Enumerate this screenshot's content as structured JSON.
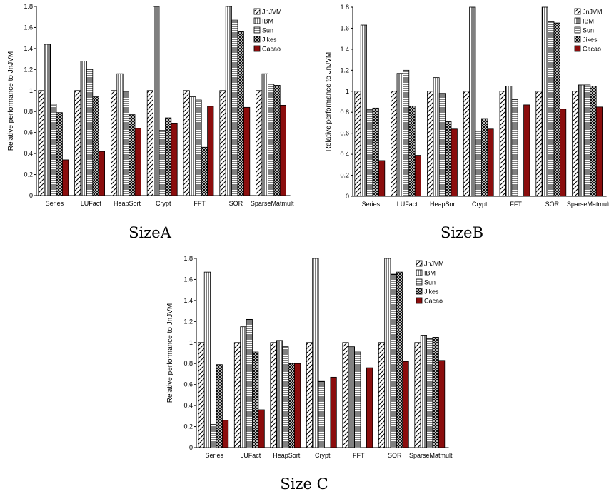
{
  "patterns": {
    "JnJVM": {
      "type": "diag",
      "color": "#000000"
    },
    "IBM": {
      "type": "vlines",
      "color": "#000000"
    },
    "Sun": {
      "type": "hlines",
      "color": "#000000"
    },
    "Jikes": {
      "type": "cross",
      "color": "#000000"
    },
    "Cacao": {
      "type": "solid",
      "color": "#8b0d0d"
    }
  },
  "chart_data": [
    {
      "type": "bar",
      "caption": "SizeA",
      "ylabel": "Relative performance to JnJVM",
      "ylim": [
        0,
        1.8
      ],
      "yticks": [
        "0",
        "0.2",
        "0.4",
        "0.6",
        "0.8",
        "1",
        "1.2",
        "1.4",
        "1.6",
        "1.8"
      ],
      "legend_position": "top-right",
      "categories": [
        "Series",
        "LUFact",
        "HeapSort",
        "Crypt",
        "FFT",
        "SOR",
        "SparseMatmult"
      ],
      "series": [
        {
          "name": "JnJVM",
          "values": [
            1,
            1,
            1,
            1,
            1,
            1,
            1
          ]
        },
        {
          "name": "IBM",
          "values": [
            1.44,
            1.28,
            1.16,
            1.8,
            0.94,
            1.8,
            1.16
          ]
        },
        {
          "name": "Sun",
          "values": [
            0.87,
            1.2,
            0.99,
            0.62,
            0.91,
            1.67,
            1.06
          ]
        },
        {
          "name": "Jikes",
          "values": [
            0.79,
            0.94,
            0.77,
            0.74,
            0.46,
            1.56,
            1.05
          ]
        },
        {
          "name": "Cacao",
          "values": [
            0.34,
            0.42,
            0.64,
            0.69,
            0.85,
            0.84,
            0.86
          ]
        }
      ]
    },
    {
      "type": "bar",
      "caption": "SizeB",
      "ylabel": "Relative performance to JnJVM",
      "ylim": [
        0,
        1.8
      ],
      "yticks": [
        "0",
        "0.2",
        "0.4",
        "0.6",
        "0.8",
        "1",
        "1.2",
        "1.4",
        "1.6",
        "1.8"
      ],
      "legend_position": "top-right",
      "categories": [
        "Series",
        "LUFact",
        "HeapSort",
        "Crypt",
        "FFT",
        "SOR",
        "SparseMatmult"
      ],
      "series": [
        {
          "name": "JnJVM",
          "values": [
            1,
            1,
            1,
            1,
            1,
            1,
            1
          ]
        },
        {
          "name": "IBM",
          "values": [
            1.63,
            1.17,
            1.13,
            1.8,
            1.05,
            1.8,
            1.06
          ]
        },
        {
          "name": "Sun",
          "values": [
            0.83,
            1.2,
            0.98,
            0.62,
            0.92,
            1.66,
            1.06
          ]
        },
        {
          "name": "Jikes",
          "values": [
            0.84,
            0.86,
            0.71,
            0.74,
            0,
            1.65,
            1.05
          ]
        },
        {
          "name": "Cacao",
          "values": [
            0.34,
            0.39,
            0.64,
            0.64,
            0.87,
            0.83,
            0.85
          ]
        }
      ]
    },
    {
      "type": "bar",
      "caption": "Size C",
      "ylabel": "Relative performance to JnJVM",
      "ylim": [
        0,
        1.8
      ],
      "yticks": [
        "0",
        "0.2",
        "0.4",
        "0.6",
        "0.8",
        "1",
        "1.2",
        "1.4",
        "1.6",
        "1.8"
      ],
      "legend_position": "top-right",
      "categories": [
        "Series",
        "LUFact",
        "HeapSort",
        "Crypt",
        "FFT",
        "SOR",
        "SparseMatmult"
      ],
      "series": [
        {
          "name": "JnJVM",
          "values": [
            1,
            1,
            1,
            1,
            1,
            1,
            1
          ]
        },
        {
          "name": "IBM",
          "values": [
            1.67,
            1.15,
            1.02,
            1.8,
            0.96,
            1.8,
            1.07
          ]
        },
        {
          "name": "Sun",
          "values": [
            0.22,
            1.22,
            0.96,
            0.63,
            0.91,
            1.65,
            1.04
          ]
        },
        {
          "name": "Jikes",
          "values": [
            0.79,
            0.91,
            0.8,
            0,
            0,
            1.67,
            1.05
          ]
        },
        {
          "name": "Cacao",
          "values": [
            0.26,
            0.36,
            0.8,
            0.67,
            0.76,
            0.82,
            0.83
          ]
        }
      ]
    }
  ]
}
